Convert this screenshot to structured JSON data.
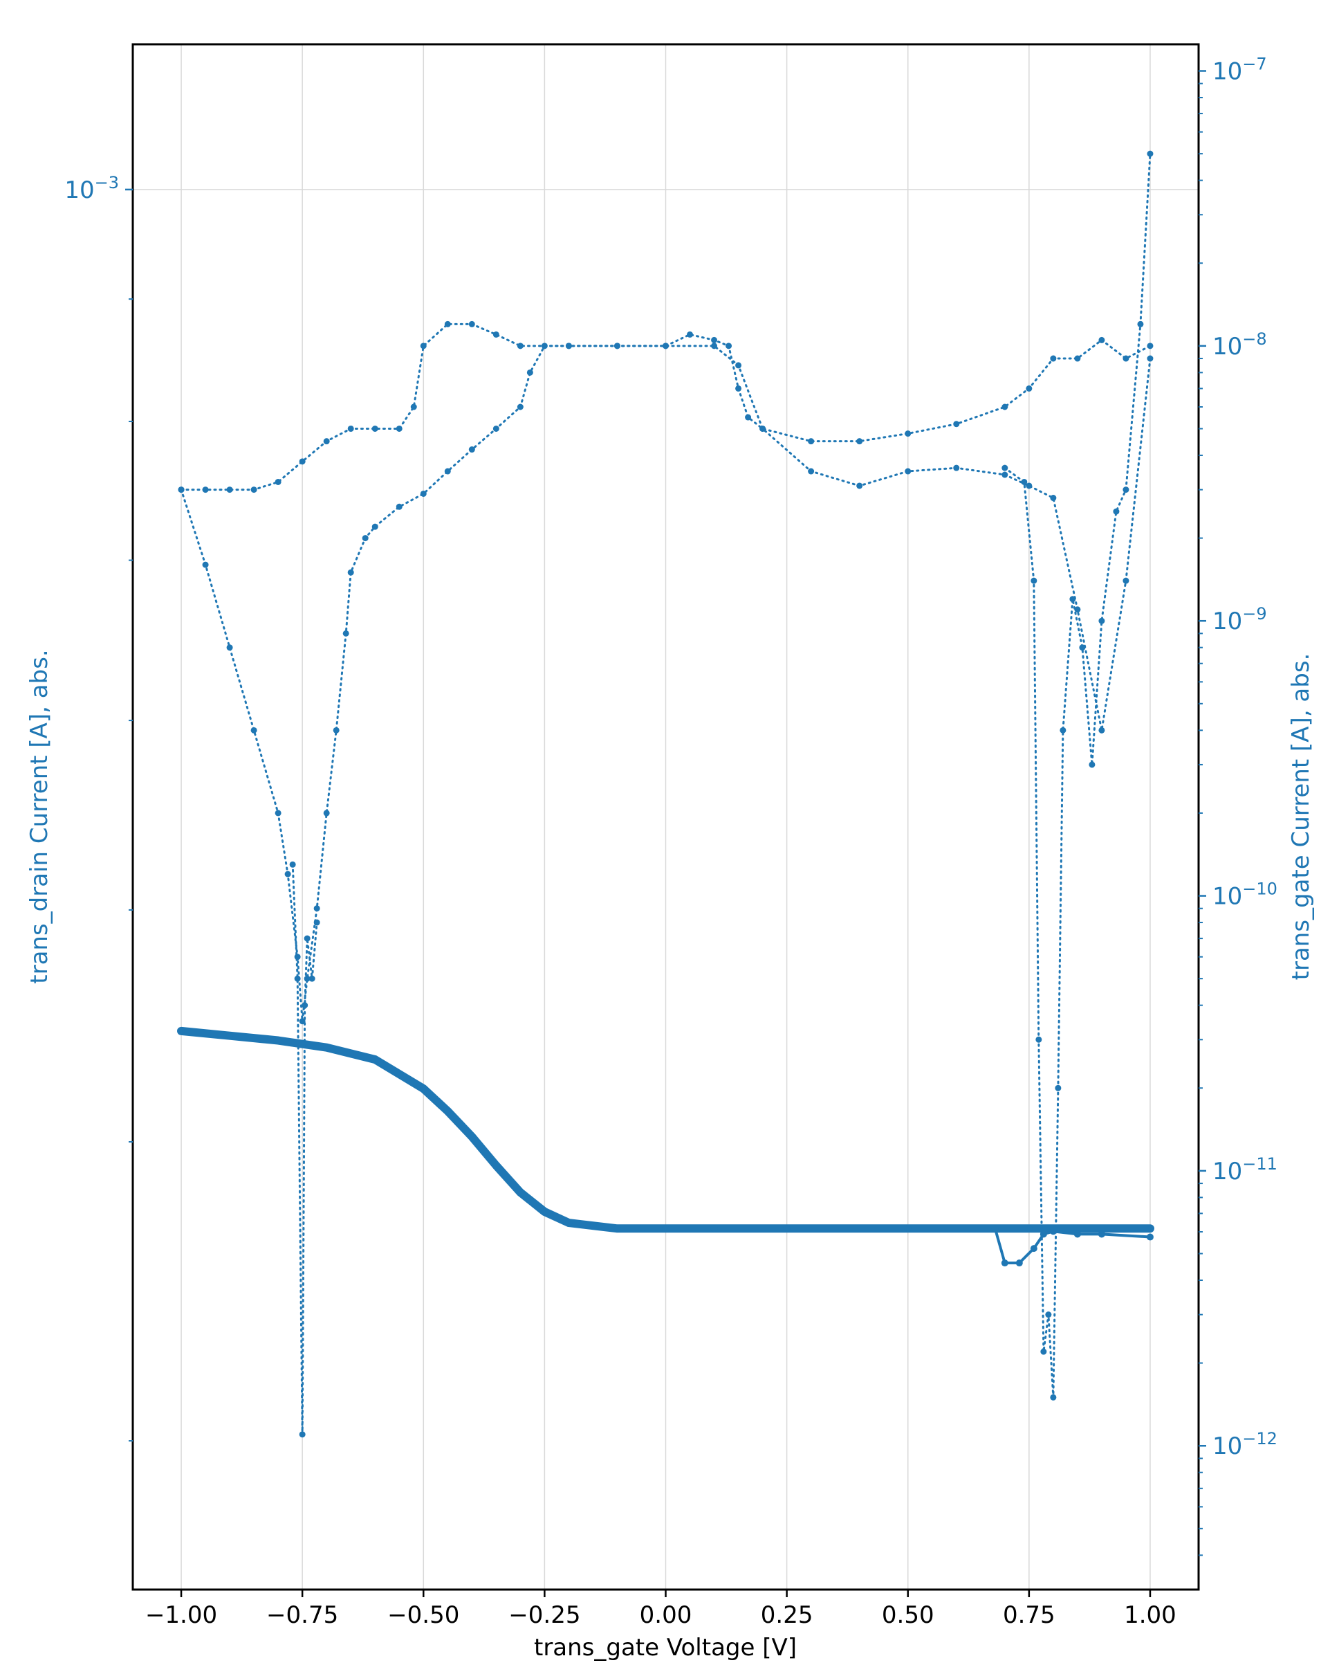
{
  "chart_data": {
    "type": "line",
    "xlabel": "trans_gate Voltage [V]",
    "ylabel_left": "trans_drain Current [A], abs.",
    "ylabel_right": "trans_gate Current [A], abs.",
    "xlim": [
      -1.1,
      1.1
    ],
    "x_ticks": [
      "−1.00",
      "−0.75",
      "−0.50",
      "−0.25",
      "0.00",
      "0.25",
      "0.50",
      "0.75",
      "1.00"
    ],
    "x_tick_values": [
      -1.0,
      -0.75,
      -0.5,
      -0.25,
      0.0,
      0.25,
      0.5,
      0.75,
      1.0
    ],
    "y_left_scale": "log",
    "y_left_major_tick": {
      "value": 0.001,
      "label": "10−3"
    },
    "y_right_scale": "log",
    "y_right_lim": [
      3e-13,
      1.25e-07
    ],
    "y_right_ticks": [
      {
        "value": 1e-07,
        "label": "10−7"
      },
      {
        "value": 1e-08,
        "label": "10−8"
      },
      {
        "value": 1e-09,
        "label": "10−9"
      },
      {
        "value": 1e-10,
        "label": "10−10"
      },
      {
        "value": 1e-11,
        "label": "10−11"
      },
      {
        "value": 1e-12,
        "label": "10−12"
      }
    ],
    "grid": true,
    "color": "#1f77b4",
    "series": [
      {
        "axis": "left",
        "style": "solid",
        "x": [
          -1.0,
          -0.9,
          -0.8,
          -0.7,
          -0.6,
          -0.5,
          -0.45,
          -0.4,
          -0.35,
          -0.3,
          -0.25,
          -0.2,
          -0.15,
          -0.1,
          -0.05,
          0.0,
          0.1,
          0.25,
          0.5,
          0.75,
          1.0
        ],
        "y": [
          0.000445,
          0.000443,
          0.000441,
          0.000438,
          0.000433,
          0.000421,
          0.000412,
          0.000402,
          0.000391,
          0.000381,
          0.000374,
          0.00037,
          0.000369,
          0.000368,
          0.000368,
          0.000368,
          0.000368,
          0.000368,
          0.000368,
          0.000368,
          0.000368
        ]
      },
      {
        "axis": "left",
        "style": "solid",
        "x": [
          0.68,
          0.7,
          0.73,
          0.76,
          0.78,
          0.8,
          0.85,
          0.9,
          1.0
        ],
        "y": [
          0.000368,
          0.000356,
          0.000356,
          0.000361,
          0.000366,
          0.000367,
          0.000366,
          0.000366,
          0.000365
        ]
      },
      {
        "axis": "right",
        "style": "dotted",
        "x": [
          -1.0,
          -0.95,
          -0.9,
          -0.85,
          -0.8,
          -0.75,
          -0.7,
          -0.65,
          -0.6,
          -0.55,
          -0.52,
          -0.5,
          -0.45,
          -0.4,
          -0.35,
          -0.3,
          -0.2,
          -0.1,
          0.0,
          0.05,
          0.1,
          0.13,
          0.15,
          0.17,
          0.2,
          0.3,
          0.4,
          0.5,
          0.6,
          0.7,
          0.75,
          0.8,
          0.85,
          0.9,
          0.95,
          1.0
        ],
        "y": [
          3e-09,
          3e-09,
          3e-09,
          3e-09,
          3.2e-09,
          3.8e-09,
          4.5e-09,
          5e-09,
          5e-09,
          5e-09,
          6e-09,
          1e-08,
          1.2e-08,
          1.2e-08,
          1.1e-08,
          1e-08,
          1e-08,
          1e-08,
          1e-08,
          1.1e-08,
          1.05e-08,
          1e-08,
          7e-09,
          5.5e-09,
          5e-09,
          4.5e-09,
          4.5e-09,
          4.8e-09,
          5.2e-09,
          6e-09,
          7e-09,
          9e-09,
          9e-09,
          1.05e-08,
          9e-09,
          1e-08
        ]
      },
      {
        "axis": "right",
        "style": "dotted",
        "x": [
          -1.0,
          -0.95,
          -0.9,
          -0.85,
          -0.8,
          -0.78,
          -0.76,
          -0.75,
          -0.74,
          -0.72,
          -0.7,
          -0.68,
          -0.66,
          -0.65,
          -0.62,
          -0.6,
          -0.55,
          -0.5,
          -0.45,
          -0.4,
          -0.35,
          -0.3,
          -0.28,
          -0.25,
          -0.2,
          -0.1,
          0.0,
          0.1,
          0.15,
          0.2,
          0.3,
          0.4,
          0.5,
          0.6,
          0.7,
          0.75,
          0.8,
          0.85,
          0.9,
          0.95,
          1.0
        ],
        "y": [
          3e-09,
          1.6e-09,
          8e-10,
          4e-10,
          2e-10,
          1.2e-10,
          6e-11,
          3.5e-11,
          5e-11,
          9e-11,
          2e-10,
          4e-10,
          9e-10,
          1.5e-09,
          2e-09,
          2.2e-09,
          2.6e-09,
          2.9e-09,
          3.5e-09,
          4.2e-09,
          5e-09,
          6e-09,
          8e-09,
          1e-08,
          1e-08,
          1e-08,
          1e-08,
          1e-08,
          8.5e-09,
          5e-09,
          3.5e-09,
          3.1e-09,
          3.5e-09,
          3.6e-09,
          3.4e-09,
          3.1e-09,
          2.8e-09,
          1.1e-09,
          4e-10,
          1.4e-09,
          9e-09
        ]
      },
      {
        "axis": "right",
        "style": "dotted",
        "x": [
          -0.77,
          -0.76,
          -0.75,
          -0.745,
          -0.74,
          -0.73,
          -0.72
        ],
        "y": [
          1.3e-10,
          5e-11,
          1.1e-12,
          4e-11,
          7e-11,
          5e-11,
          8e-11
        ]
      },
      {
        "axis": "right",
        "style": "dotted",
        "x": [
          0.7,
          0.74,
          0.76,
          0.77,
          0.78,
          0.79,
          0.8,
          0.81,
          0.82,
          0.84,
          0.86,
          0.88,
          0.9,
          0.93,
          0.95,
          0.98,
          1.0
        ],
        "y": [
          3.6e-09,
          3.2e-09,
          1.4e-09,
          3e-11,
          2.2e-12,
          3e-12,
          1.5e-12,
          2e-11,
          4e-10,
          1.2e-09,
          8e-10,
          3e-10,
          1e-09,
          2.5e-09,
          3e-09,
          1.2e-08,
          5e-08
        ]
      }
    ]
  }
}
